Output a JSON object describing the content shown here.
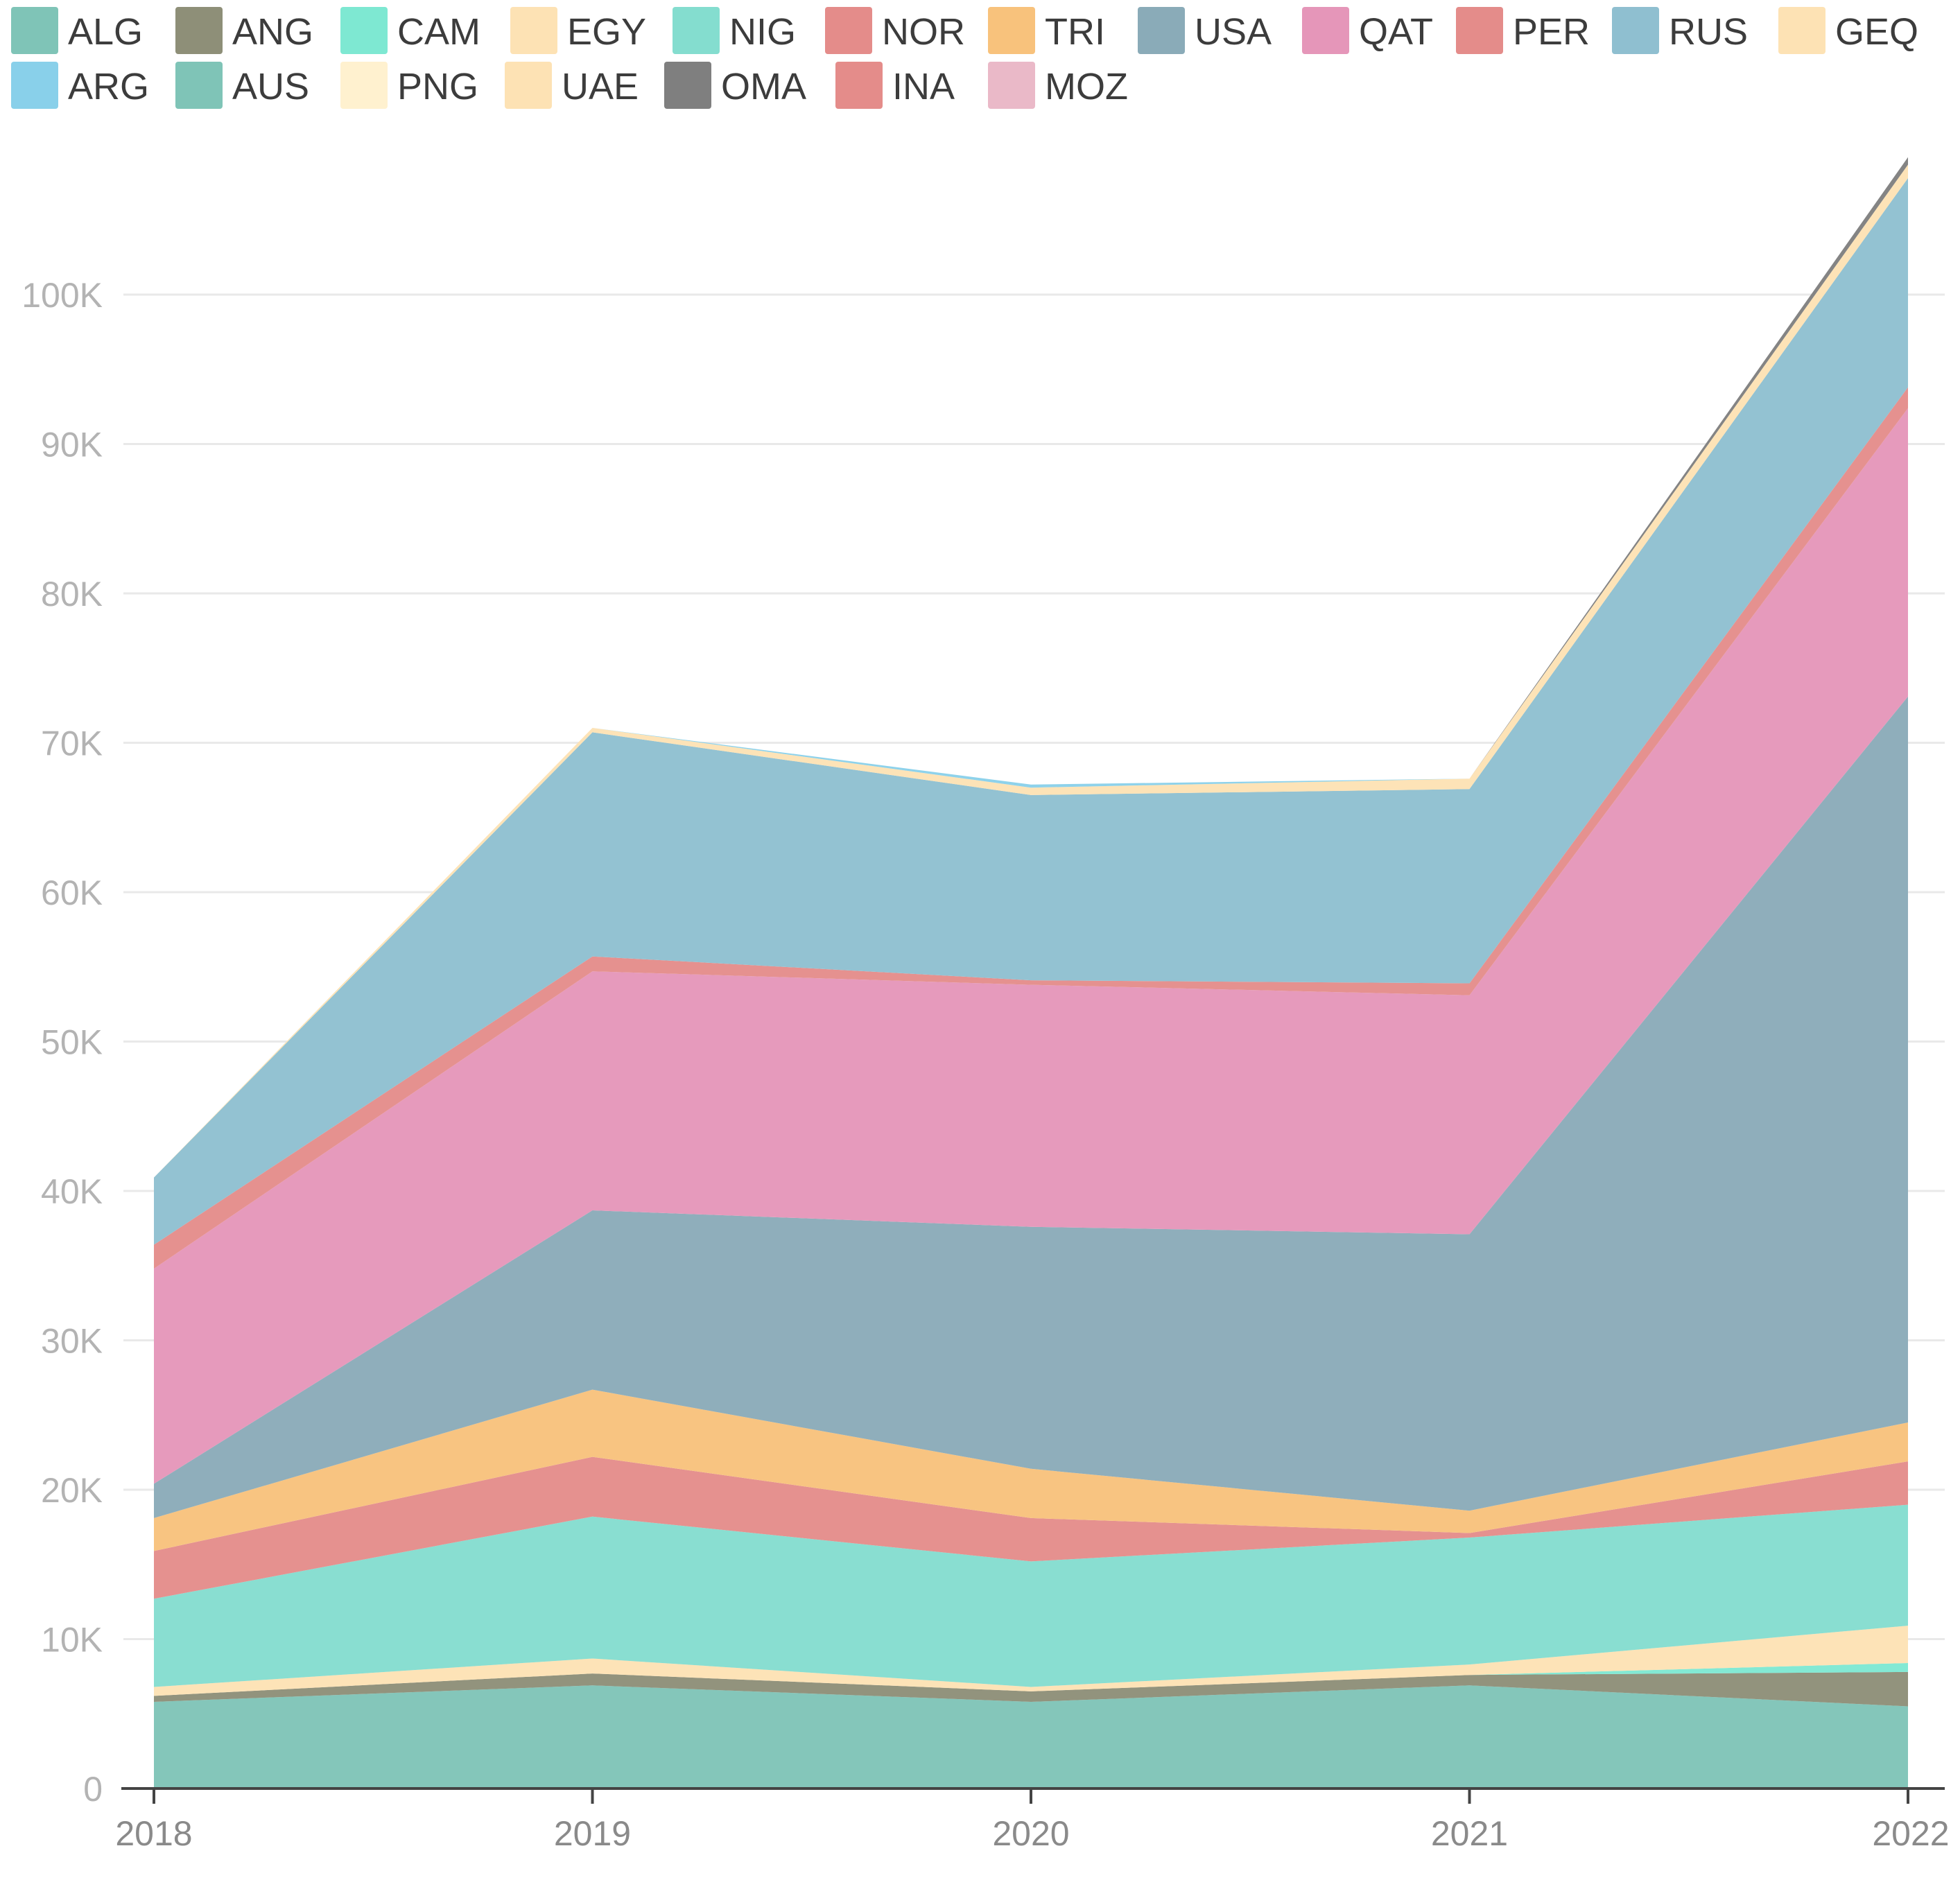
{
  "chart_data": {
    "type": "area",
    "stacked": true,
    "title": "",
    "xlabel": "",
    "ylabel": "",
    "x": [
      "2018",
      "2019",
      "2020",
      "2021",
      "2022"
    ],
    "ylim": [
      0,
      110000
    ],
    "yticks": [
      {
        "value": 0,
        "label": "0"
      },
      {
        "value": 10000,
        "label": "10K"
      },
      {
        "value": 20000,
        "label": "20K"
      },
      {
        "value": 30000,
        "label": "30K"
      },
      {
        "value": 40000,
        "label": "40K"
      },
      {
        "value": 50000,
        "label": "50K"
      },
      {
        "value": 60000,
        "label": "60K"
      },
      {
        "value": 70000,
        "label": "70K"
      },
      {
        "value": 80000,
        "label": "80K"
      },
      {
        "value": 90000,
        "label": "90K"
      },
      {
        "value": 100000,
        "label": "100K"
      }
    ],
    "grid": true,
    "legend_position": "top",
    "series": [
      {
        "name": "ALG",
        "color": "#7fc4b7",
        "values": [
          5800,
          6900,
          5800,
          6900,
          5500
        ]
      },
      {
        "name": "ANG",
        "color": "#8e8f78",
        "values": [
          400,
          800,
          700,
          700,
          2300
        ]
      },
      {
        "name": "CAM",
        "color": "#7ee8d2",
        "values": [
          0,
          0,
          0,
          0,
          600
        ]
      },
      {
        "name": "EGY",
        "color": "#fde2b4",
        "values": [
          600,
          1000,
          300,
          700,
          2500
        ]
      },
      {
        "name": "NIG",
        "color": "#84ddcf",
        "values": [
          5900,
          9500,
          8400,
          8500,
          8100
        ]
      },
      {
        "name": "NOR",
        "color": "#e48c8a",
        "values": [
          3200,
          4000,
          2900,
          300,
          2900
        ]
      },
      {
        "name": "TRI",
        "color": "#f8c27c",
        "values": [
          2200,
          4500,
          3300,
          1500,
          2600
        ]
      },
      {
        "name": "USA",
        "color": "#8aabb8",
        "values": [
          2300,
          12000,
          16200,
          18500,
          48600
        ]
      },
      {
        "name": "QAT",
        "color": "#e596b9",
        "values": [
          14400,
          16000,
          16200,
          16000,
          19300
        ]
      },
      {
        "name": "PER",
        "color": "#e48c8a",
        "values": [
          1600,
          1000,
          300,
          800,
          1400
        ]
      },
      {
        "name": "RUS",
        "color": "#8fbfd0",
        "values": [
          4500,
          15000,
          12400,
          13000,
          14000
        ]
      },
      {
        "name": "GEQ",
        "color": "#fde2b4",
        "values": [
          0,
          300,
          500,
          700,
          900
        ]
      },
      {
        "name": "ARG",
        "color": "#89d0ea",
        "values": [
          0,
          0,
          200,
          0,
          0
        ]
      },
      {
        "name": "AUS",
        "color": "#7fc4b7",
        "values": [
          0,
          0,
          0,
          0,
          0
        ]
      },
      {
        "name": "PNG",
        "color": "#fff1cf",
        "values": [
          0,
          0,
          0,
          0,
          0
        ]
      },
      {
        "name": "UAE",
        "color": "#fde2b4",
        "values": [
          0,
          0,
          0,
          0,
          0
        ]
      },
      {
        "name": "OMA",
        "color": "#7f7f7f",
        "values": [
          0,
          0,
          0,
          0,
          500
        ]
      },
      {
        "name": "INA",
        "color": "#e48c8a",
        "values": [
          0,
          0,
          0,
          0,
          0
        ]
      },
      {
        "name": "MOZ",
        "color": "#eab9c8",
        "values": [
          0,
          0,
          0,
          0,
          0
        ]
      }
    ]
  }
}
